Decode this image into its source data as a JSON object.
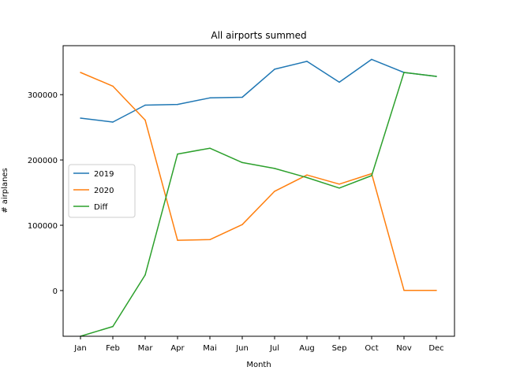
{
  "chart_data": {
    "type": "line",
    "title": "All airports summed",
    "xlabel": "Month",
    "ylabel": "# airplanes",
    "categories": [
      "Jan",
      "Feb",
      "Mar",
      "Apr",
      "Mai",
      "Jun",
      "Jul",
      "Aug",
      "Sep",
      "Oct",
      "Nov",
      "Dec"
    ],
    "ylim": [
      -70000,
      375000
    ],
    "yticks": [
      0,
      100000,
      200000,
      300000
    ],
    "ytick_labels": [
      "0",
      "100000",
      "200000",
      "300000"
    ],
    "grid": false,
    "legend_position": "center-left",
    "series": [
      {
        "name": "2019",
        "color": "#1f77b4",
        "values": [
          264000,
          258000,
          284000,
          285000,
          295000,
          296000,
          339000,
          351000,
          319000,
          354000,
          334000,
          328000
        ]
      },
      {
        "name": "2020",
        "color": "#ff7f0e",
        "values": [
          334000,
          313000,
          261000,
          77000,
          78000,
          101000,
          152000,
          177000,
          163000,
          179000,
          300,
          300
        ]
      },
      {
        "name": "Diff",
        "color": "#2ca02c",
        "values": [
          -70000,
          -55000,
          24000,
          209000,
          218000,
          196000,
          187000,
          173000,
          157000,
          176000,
          334000,
          328000
        ]
      }
    ]
  }
}
